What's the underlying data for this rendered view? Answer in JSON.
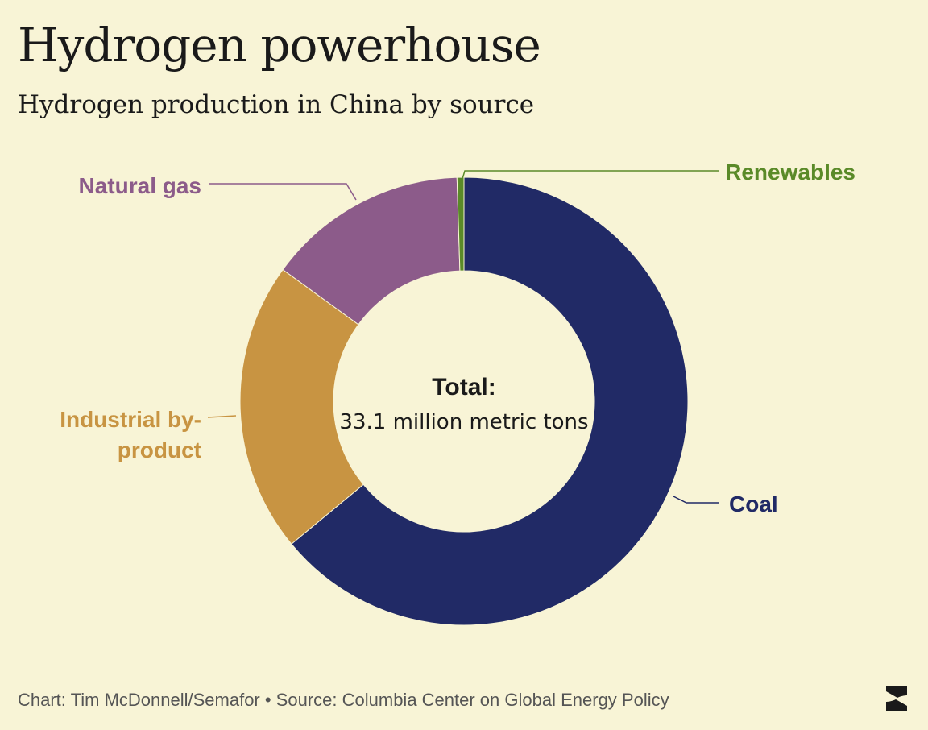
{
  "title": "Hydrogen powerhouse",
  "subtitle": "Hydrogen production in China by source",
  "chart_data": {
    "type": "pie",
    "donut": true,
    "slices": [
      {
        "label": "Coal",
        "value": 64,
        "color": "#212a66"
      },
      {
        "label": "Industrial by-product",
        "value": 21,
        "color": "#c89442"
      },
      {
        "label": "Natural gas",
        "value": 14.5,
        "color": "#8c5b8a"
      },
      {
        "label": "Renewables",
        "value": 0.5,
        "color": "#5a8a28"
      }
    ],
    "center_label": {
      "title": "Total:",
      "value": "33.1 million metric tons"
    }
  },
  "footer": {
    "text": "Chart: Tim McDonnell/Semafor • Source: Columbia Center on Global Energy Policy"
  },
  "logo": {
    "icon": "semafor-logo-icon"
  }
}
